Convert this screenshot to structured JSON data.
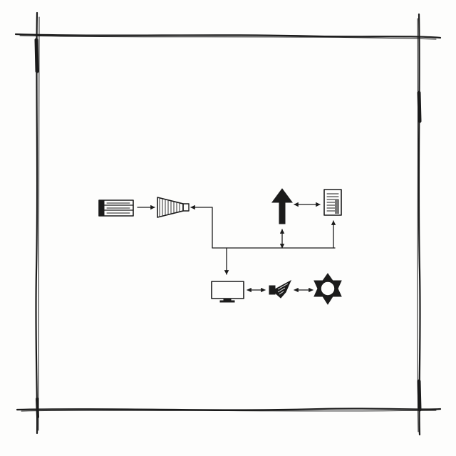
{
  "diagram": {
    "nodes": [
      {
        "id": "server",
        "icon": "server-rack-icon"
      },
      {
        "id": "funnel",
        "icon": "funnel-icon"
      },
      {
        "id": "up-arrow",
        "icon": "up-arrow-icon"
      },
      {
        "id": "document",
        "icon": "document-icon"
      },
      {
        "id": "monitor",
        "icon": "monitor-icon"
      },
      {
        "id": "speaker",
        "icon": "speaker-icon"
      },
      {
        "id": "gear",
        "icon": "gear-star-icon"
      }
    ],
    "edges": [
      {
        "from": "server",
        "to": "funnel",
        "direction": "forward"
      },
      {
        "from": "funnel",
        "to": "bus",
        "direction": "backward"
      },
      {
        "from": "up-arrow",
        "to": "document",
        "direction": "both"
      },
      {
        "from": "bus",
        "to": "up-arrow",
        "direction": "both"
      },
      {
        "from": "bus",
        "to": "document",
        "direction": "forward"
      },
      {
        "from": "bus",
        "to": "monitor",
        "direction": "forward"
      },
      {
        "from": "monitor",
        "to": "speaker",
        "direction": "both"
      },
      {
        "from": "speaker",
        "to": "gear",
        "direction": "both"
      }
    ]
  },
  "colors": {
    "ink": "#1b1b1b",
    "paper": "#fdfdfc"
  }
}
